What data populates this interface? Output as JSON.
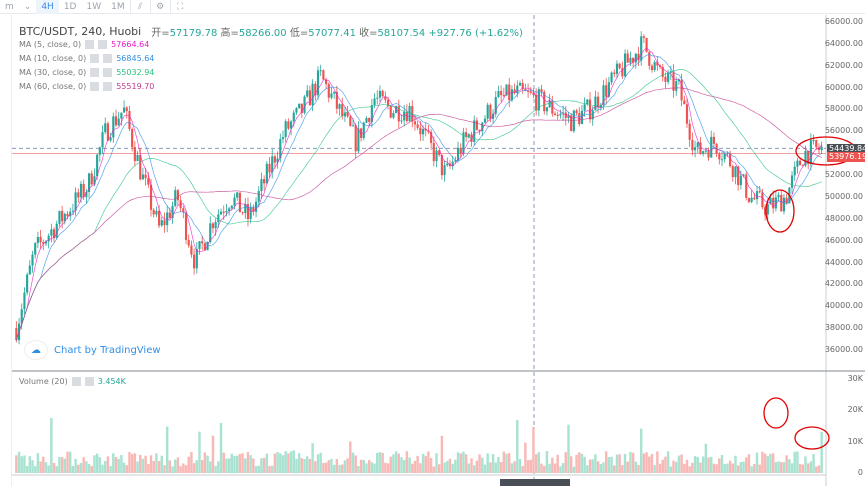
{
  "toolbar": {
    "items": [
      "m",
      "4H",
      "1D",
      "1W",
      "1M"
    ],
    "active": "4H",
    "icons": [
      "chart-type-icon",
      "settings-icon",
      "screenshot-icon"
    ]
  },
  "title": {
    "symbol": "BTC/USDT, 240, Huobi",
    "open_label": "开=",
    "open": "57179.78",
    "high_label": "高=",
    "high": "58266.00",
    "low_label": "低=",
    "low": "57077.41",
    "close_label": "收=",
    "close": "58107.54",
    "change": "+927.76 (+1.62%)"
  },
  "indicators": [
    {
      "label": "MA (5, close, 0)",
      "value": "57664.64",
      "color": "#e91ec7"
    },
    {
      "label": "MA (10, close, 0)",
      "value": "56845.64",
      "color": "#2e8fe6"
    },
    {
      "label": "MA (30, close, 0)",
      "value": "55032.94",
      "color": "#26c281"
    },
    {
      "label": "MA (60, close, 0)",
      "value": "55519.70",
      "color": "#c2398f"
    }
  ],
  "watermark": "Chart by TradingView",
  "volume": {
    "label": "Volume (20)",
    "value": "3.454K"
  },
  "price_axis": [
    "66000.00",
    "64000.00",
    "62000.00",
    "60000.00",
    "58000.00",
    "56000.00",
    "52000.00",
    "50000.00",
    "48000.00",
    "46000.00",
    "44000.00",
    "42000.00",
    "40000.00",
    "38000.00",
    "36000.00"
  ],
  "volume_axis": [
    "30K",
    "20K",
    "10K",
    "0"
  ],
  "price_tags": {
    "crosshair": "54439.84",
    "last": "53976.19"
  },
  "colors": {
    "up": "#26a69a",
    "down": "#ef5350",
    "vol_up": "#a8e2d0",
    "vol_down": "#f7b8b6",
    "annotation": "#e00000"
  },
  "chart_data": {
    "type": "candlestick",
    "price_range": [
      35000,
      66500
    ],
    "volume_range": [
      0,
      30000
    ],
    "price_path": [
      38000,
      45000,
      47000,
      49000,
      51000,
      56000,
      58000,
      52000,
      47000,
      50000,
      44000,
      48000,
      50000,
      48000,
      52000,
      56000,
      58000,
      61000,
      58000,
      55000,
      59000,
      58000,
      58000,
      55000,
      52000,
      55000,
      57000,
      59000,
      59500,
      59000,
      58000,
      57000,
      58000,
      60000,
      62000,
      64000,
      61000,
      60000,
      54000,
      55000,
      53000,
      50000,
      49000,
      50000,
      54000,
      54400
    ]
  }
}
